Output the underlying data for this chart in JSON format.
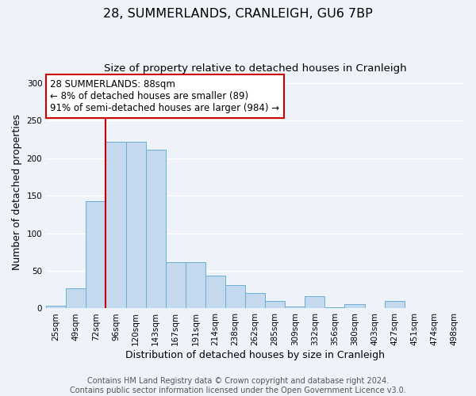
{
  "title": "28, SUMMERLANDS, CRANLEIGH, GU6 7BP",
  "subtitle": "Size of property relative to detached houses in Cranleigh",
  "xlabel": "Distribution of detached houses by size in Cranleigh",
  "ylabel": "Number of detached properties",
  "categories": [
    "25sqm",
    "49sqm",
    "72sqm",
    "96sqm",
    "120sqm",
    "143sqm",
    "167sqm",
    "191sqm",
    "214sqm",
    "238sqm",
    "262sqm",
    "285sqm",
    "309sqm",
    "332sqm",
    "356sqm",
    "380sqm",
    "403sqm",
    "427sqm",
    "451sqm",
    "474sqm",
    "498sqm"
  ],
  "values": [
    4,
    27,
    143,
    222,
    222,
    211,
    62,
    62,
    44,
    31,
    20,
    10,
    3,
    16,
    2,
    6,
    1,
    10,
    1,
    0,
    1
  ],
  "bar_color": "#c5d9ee",
  "bar_edge_color": "#6aaed6",
  "vline_color": "#cc0000",
  "annotation_box": {
    "text_line1": "28 SUMMERLANDS: 88sqm",
    "text_line2": "← 8% of detached houses are smaller (89)",
    "text_line3": "91% of semi-detached houses are larger (984) →",
    "box_color": "#cc0000",
    "text_color": "#000000"
  },
  "footer_line1": "Contains HM Land Registry data © Crown copyright and database right 2024.",
  "footer_line2": "Contains public sector information licensed under the Open Government Licence v3.0.",
  "ylim": [
    0,
    310
  ],
  "yticks": [
    0,
    50,
    100,
    150,
    200,
    250,
    300
  ],
  "background_color": "#eef2f9",
  "grid_color": "#ffffff",
  "title_fontsize": 11.5,
  "subtitle_fontsize": 9.5,
  "axis_label_fontsize": 9,
  "tick_fontsize": 7.5,
  "annotation_fontsize": 8.5,
  "footer_fontsize": 7
}
